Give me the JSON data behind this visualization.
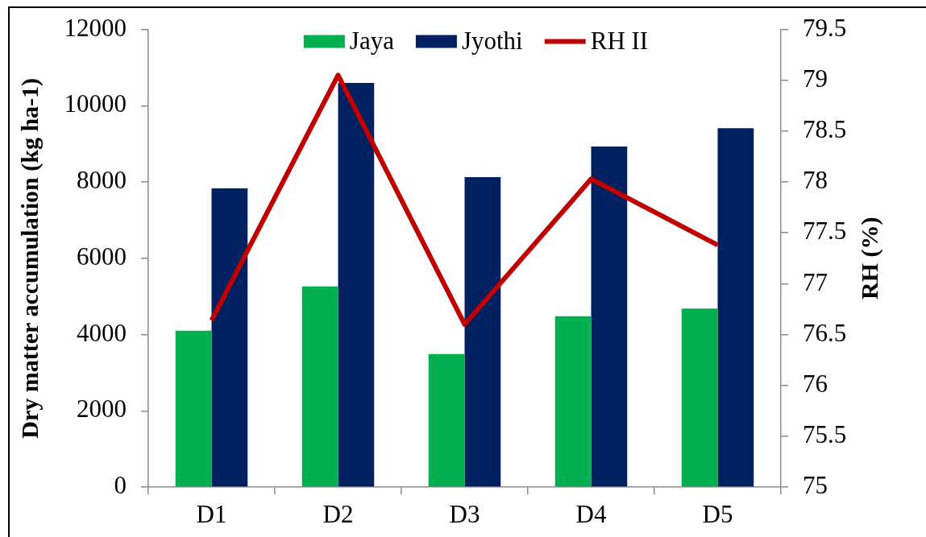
{
  "chart_data": {
    "type": "bar",
    "categories": [
      "D1",
      "D2",
      "D3",
      "D4",
      "D5"
    ],
    "series": [
      {
        "name": "Jaya",
        "color": "#00b050",
        "values": [
          4100,
          5260,
          3490,
          4480,
          4680
        ]
      },
      {
        "name": "Jyothi",
        "color": "#002060",
        "values": [
          7830,
          10600,
          8130,
          8930,
          9410
        ]
      },
      {
        "name": "RH II",
        "type": "line",
        "axis": "y2",
        "color": "#c00000",
        "values": [
          76.64,
          79.05,
          76.6,
          78.03,
          77.38
        ]
      }
    ],
    "ylabel": "Dry matter accumulation (kg ha-1)",
    "y2label": "RH (%)",
    "ylim": [
      0,
      12000
    ],
    "yticks": [
      0,
      2000,
      4000,
      6000,
      8000,
      10000,
      12000
    ],
    "y2lim": [
      75,
      79.5
    ],
    "y2ticks": [
      75,
      75.5,
      76,
      76.5,
      77,
      77.5,
      78,
      78.5,
      79,
      79.5
    ],
    "grid": false,
    "legend": "top",
    "marker": "none",
    "line_style": "solid"
  }
}
